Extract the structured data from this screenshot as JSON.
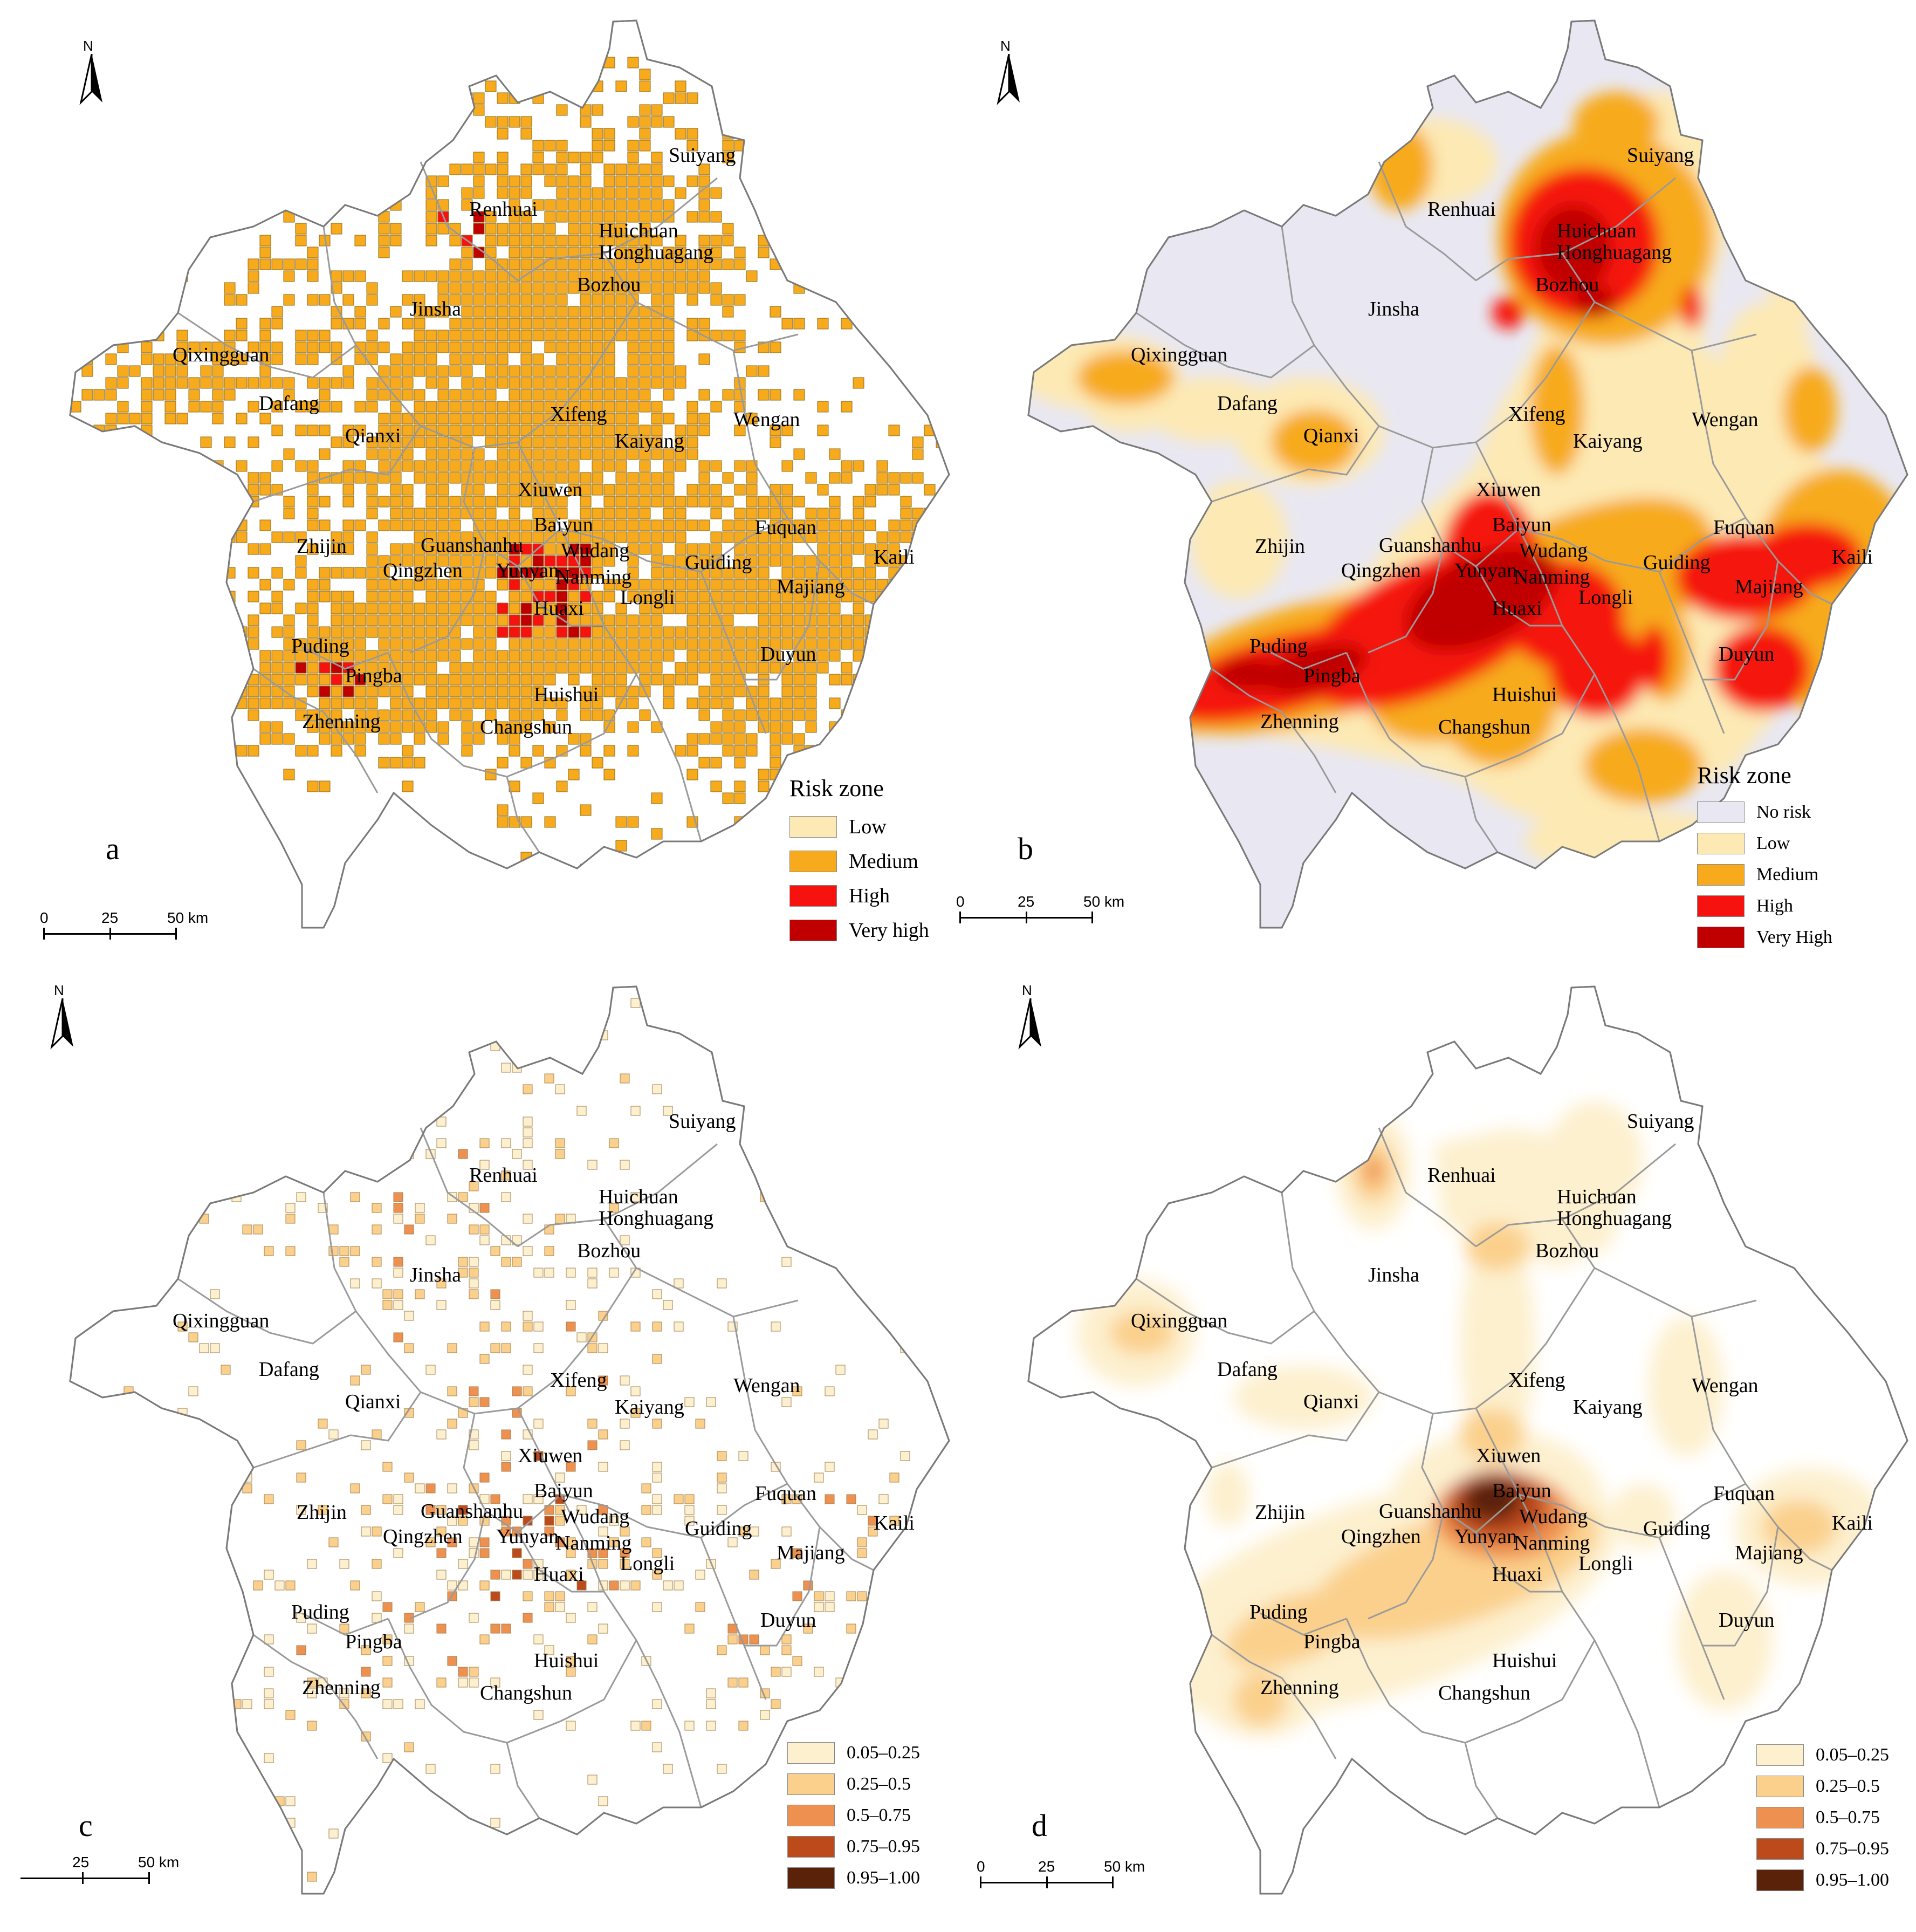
{
  "place_names": [
    "Suiyang",
    "Renhuai",
    "Huichuan",
    "Honghuagang",
    "Bozhou",
    "Jinsha",
    "Qixingguan",
    "Dafang",
    "Qianxi",
    "Xifeng",
    "Kaiyang",
    "Wengan",
    "Xiuwen",
    "Baiyun",
    "Wudang",
    "Guanshanhu",
    "Qingzhen",
    "Yunyan",
    "Nanming",
    "Huaxi",
    "Zhijin",
    "Fuquan",
    "Guiding",
    "Kaili",
    "Majiang",
    "Longli",
    "Puding",
    "Pingba",
    "Duyun",
    "Huishui",
    "Zhenning",
    "Changshun"
  ],
  "north_label": "N",
  "panels": {
    "a": {
      "letter": "a",
      "legend_title": "Risk zone",
      "legend": [
        {
          "label": "Low",
          "color": "#fde9b4"
        },
        {
          "label": "Medium",
          "color": "#f7aa1c"
        },
        {
          "label": "High",
          "color": "#f5120f"
        },
        {
          "label": "Very high",
          "color": "#c00000"
        }
      ],
      "scale": [
        "0",
        "25",
        "50 km"
      ]
    },
    "b": {
      "letter": "b",
      "legend_title": "Risk zone",
      "legend": [
        {
          "label": "No risk",
          "color": "#e9e8f2"
        },
        {
          "label": "Low",
          "color": "#fde9b4"
        },
        {
          "label": "Medium",
          "color": "#f7aa1c"
        },
        {
          "label": "High",
          "color": "#f5120f"
        },
        {
          "label": "Very High",
          "color": "#c00000"
        }
      ],
      "scale": [
        "0",
        "25",
        "50 km"
      ]
    },
    "c": {
      "letter": "c",
      "legend_title": "",
      "legend": [
        {
          "label": "0.05–0.25",
          "color": "#fdf0cf"
        },
        {
          "label": "0.25–0.5",
          "color": "#fbd08c"
        },
        {
          "label": "0.5–0.75",
          "color": "#ee9150"
        },
        {
          "label": "0.75–0.95",
          "color": "#bd4a1a"
        },
        {
          "label": "0.95–1.00",
          "color": "#5a2209"
        }
      ],
      "scale": [
        "25",
        "50 km"
      ]
    },
    "d": {
      "letter": "d",
      "legend_title": "",
      "legend": [
        {
          "label": "0.05–0.25",
          "color": "#fdf0cf"
        },
        {
          "label": "0.25–0.5",
          "color": "#fbd08c"
        },
        {
          "label": "0.5–0.75",
          "color": "#ee9150"
        },
        {
          "label": "0.75–0.95",
          "color": "#bd4a1a"
        },
        {
          "label": "0.95–1.00",
          "color": "#5a2209"
        }
      ],
      "scale": [
        "0",
        "25",
        "50 km"
      ]
    }
  }
}
